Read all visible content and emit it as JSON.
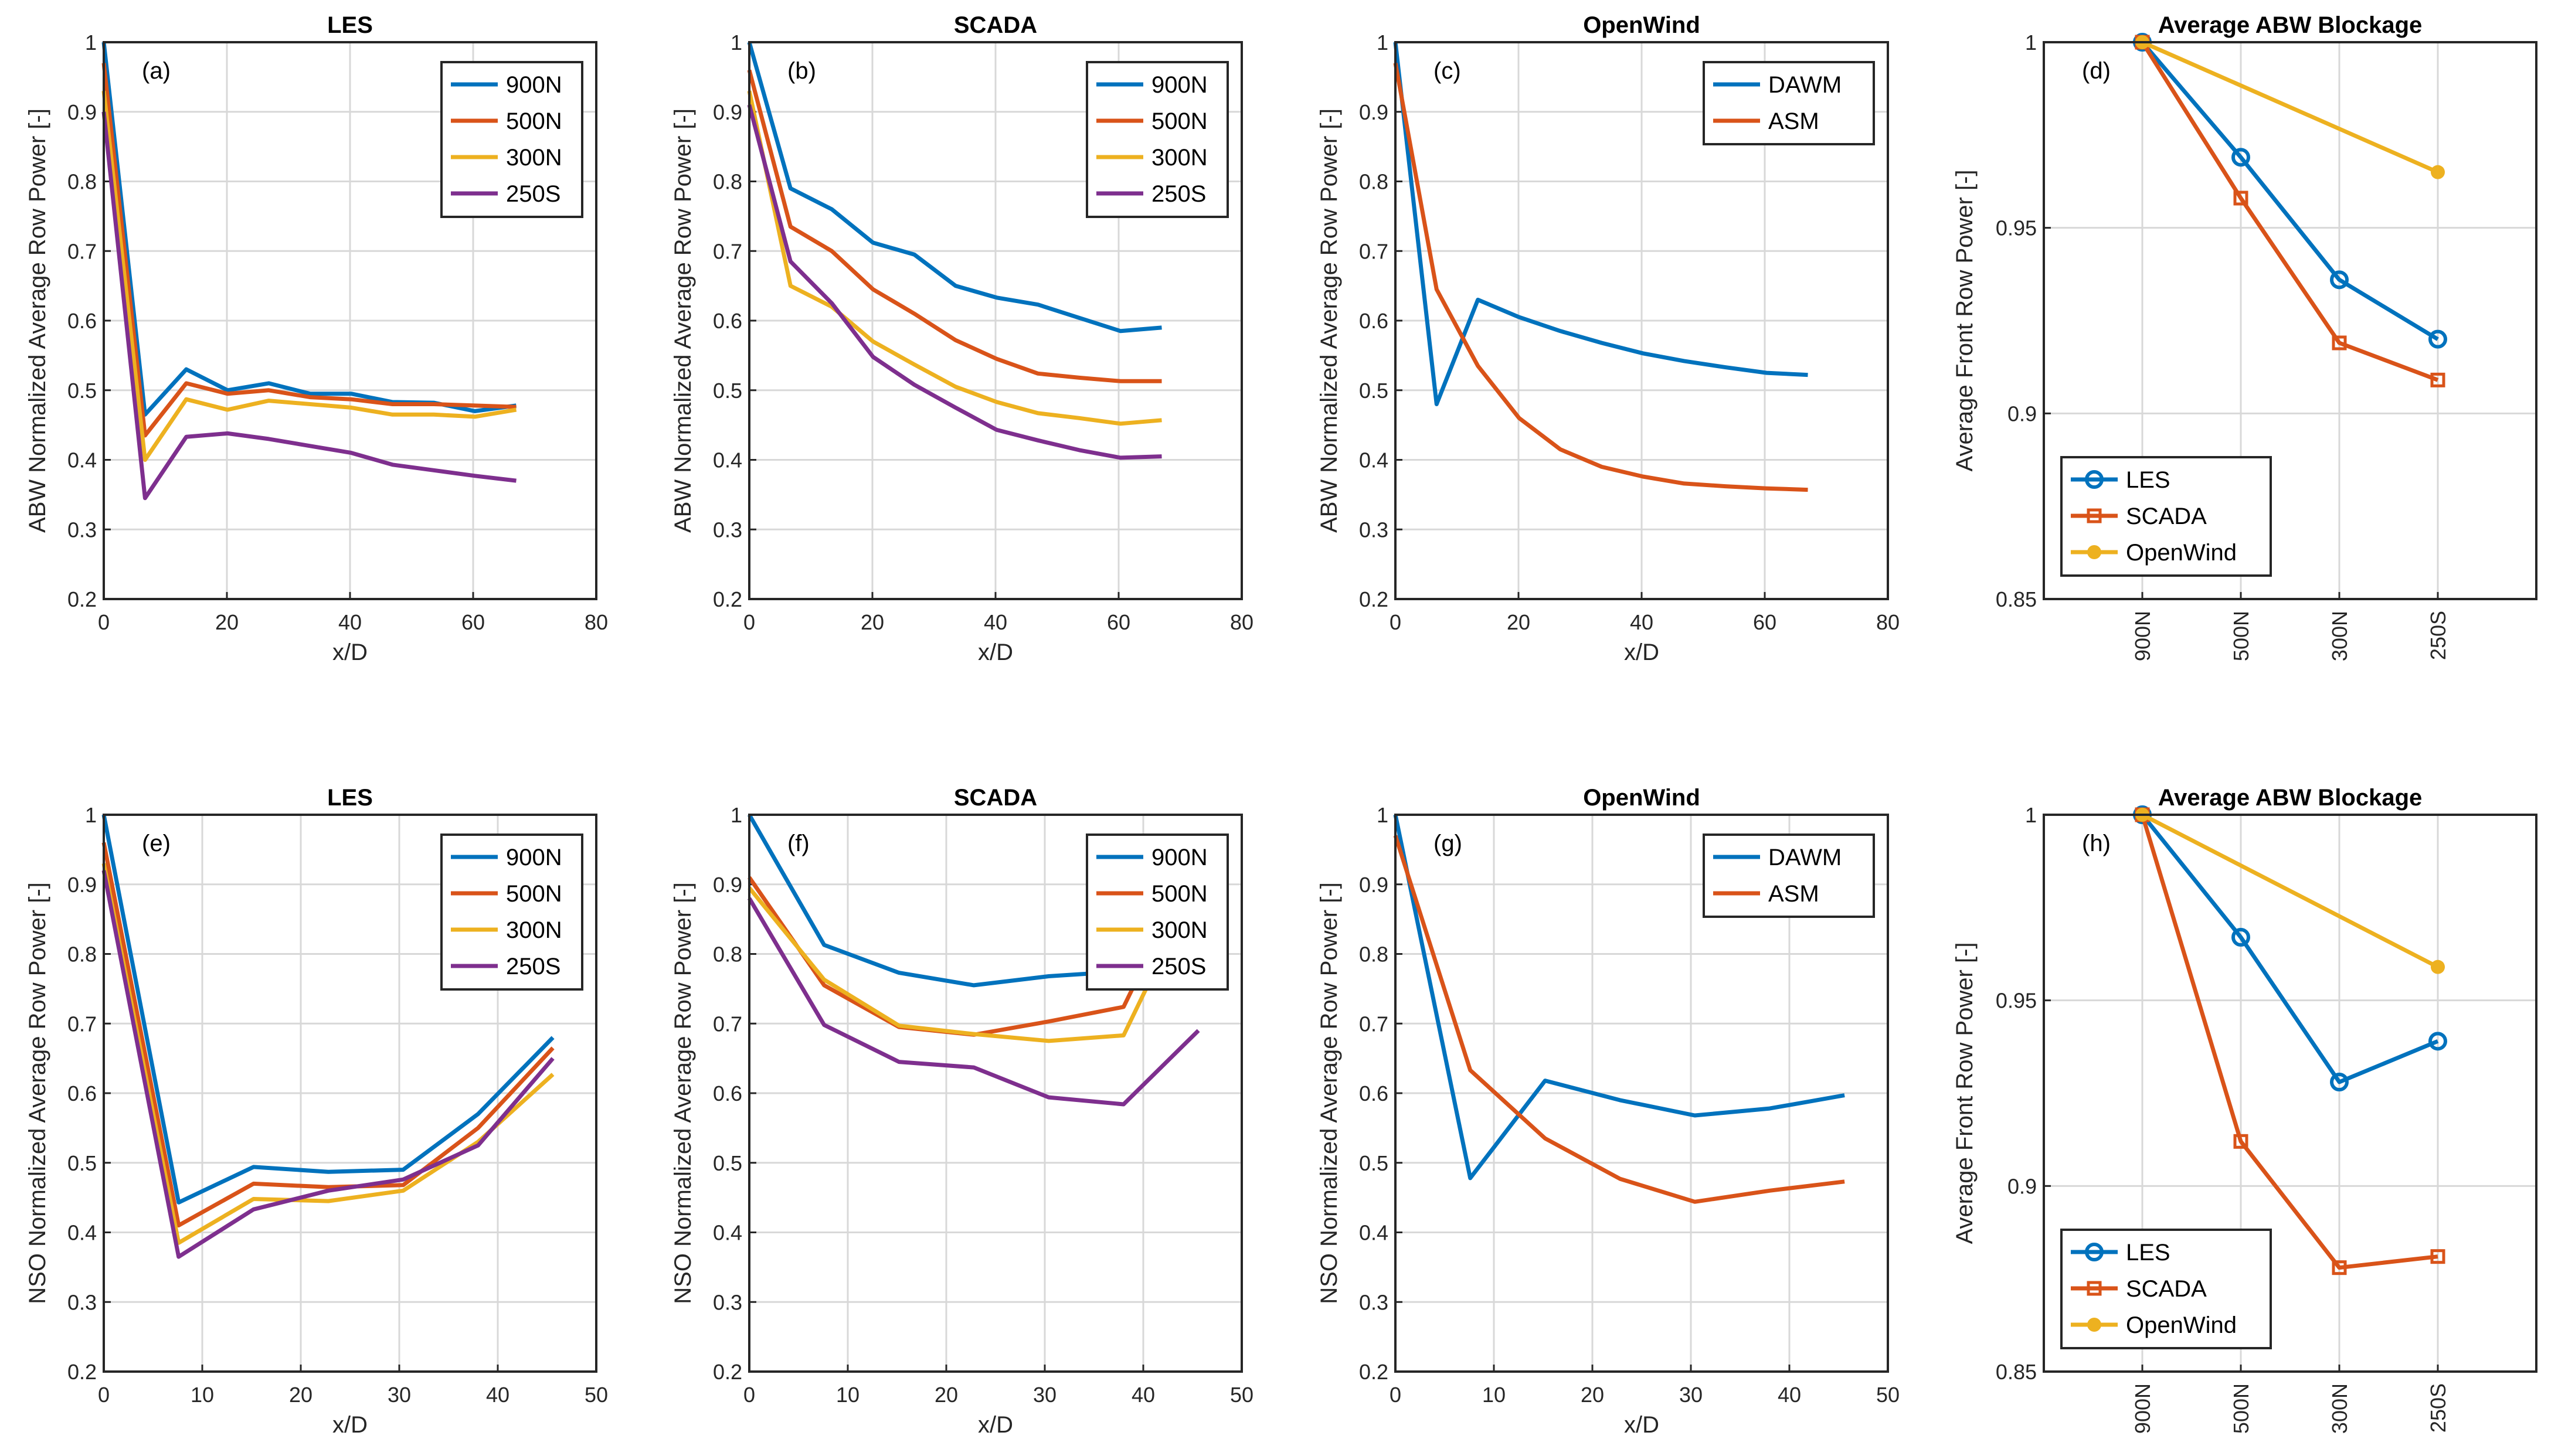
{
  "colors": {
    "c900N": "#0072BD",
    "c500N": "#D95319",
    "c300N": "#EDB120",
    "c250S": "#7E2F8E"
  },
  "chart_data": [
    {
      "type": "line",
      "title": "LES",
      "panel": "(a)",
      "xlabel": "x/D",
      "ylabel": "ABW Normalized Average Row Power [-]",
      "xlim": [
        0,
        80
      ],
      "ylim": [
        0.2,
        1
      ],
      "xticks": [
        0,
        20,
        40,
        60,
        80
      ],
      "yticks": [
        0.2,
        0.3,
        0.4,
        0.5,
        0.6,
        0.7,
        0.8,
        0.9,
        1
      ],
      "ytick_labels": [
        "0.2",
        "0.3",
        "0.4",
        "0.5",
        "0.6",
        "0.7",
        "0.8",
        "0.9",
        "1"
      ],
      "grid": true,
      "legend": "top-right",
      "series": [
        {
          "name": "900N",
          "color": "#0072BD",
          "x": [
            0,
            6.7,
            13.4,
            20.1,
            26.8,
            33.5,
            40.2,
            46.9,
            53.6,
            60.3,
            67
          ],
          "y": [
            1,
            0.465,
            0.53,
            0.5,
            0.51,
            0.495,
            0.495,
            0.483,
            0.482,
            0.47,
            0.478
          ]
        },
        {
          "name": "500N",
          "color": "#D95319",
          "x": [
            0,
            6.7,
            13.4,
            20.1,
            26.8,
            33.5,
            40.2,
            46.9,
            53.6,
            60.3,
            67
          ],
          "y": [
            0.97,
            0.435,
            0.51,
            0.495,
            0.5,
            0.49,
            0.487,
            0.48,
            0.48,
            0.478,
            0.476
          ]
        },
        {
          "name": "300N",
          "color": "#EDB120",
          "x": [
            0,
            6.7,
            13.4,
            20.1,
            26.8,
            33.5,
            40.2,
            46.9,
            53.6,
            60.3,
            67
          ],
          "y": [
            0.93,
            0.4,
            0.487,
            0.472,
            0.485,
            0.48,
            0.475,
            0.465,
            0.465,
            0.462,
            0.472
          ]
        },
        {
          "name": "250S",
          "color": "#7E2F8E",
          "x": [
            0,
            6.7,
            13.4,
            20.1,
            26.8,
            33.5,
            40.2,
            46.9,
            53.6,
            60.3,
            67
          ],
          "y": [
            0.9,
            0.345,
            0.433,
            0.438,
            0.43,
            0.42,
            0.41,
            0.393,
            0.385,
            0.377,
            0.37
          ]
        }
      ]
    },
    {
      "type": "line",
      "title": "SCADA",
      "panel": "(b)",
      "xlabel": "x/D",
      "ylabel": "ABW Normalized Average Row Power [-]",
      "xlim": [
        0,
        80
      ],
      "ylim": [
        0.2,
        1
      ],
      "xticks": [
        0,
        20,
        40,
        60,
        80
      ],
      "yticks": [
        0.2,
        0.3,
        0.4,
        0.5,
        0.6,
        0.7,
        0.8,
        0.9,
        1
      ],
      "ytick_labels": [
        "0.2",
        "0.3",
        "0.4",
        "0.5",
        "0.6",
        "0.7",
        "0.8",
        "0.9",
        "1"
      ],
      "grid": true,
      "legend": "top-right",
      "series": [
        {
          "name": "900N",
          "color": "#0072BD",
          "x": [
            0,
            6.7,
            13.4,
            20.1,
            26.8,
            33.5,
            40.2,
            46.9,
            53.6,
            60.3,
            67
          ],
          "y": [
            1,
            0.79,
            0.76,
            0.712,
            0.695,
            0.65,
            0.633,
            0.623,
            0.604,
            0.585,
            0.59
          ]
        },
        {
          "name": "500N",
          "color": "#D95319",
          "x": [
            0,
            6.7,
            13.4,
            20.1,
            26.8,
            33.5,
            40.2,
            46.9,
            53.6,
            60.3,
            67
          ],
          "y": [
            0.96,
            0.735,
            0.7,
            0.645,
            0.61,
            0.572,
            0.545,
            0.524,
            0.518,
            0.513,
            0.513
          ]
        },
        {
          "name": "300N",
          "color": "#EDB120",
          "x": [
            0,
            6.7,
            13.4,
            20.1,
            26.8,
            33.5,
            40.2,
            46.9,
            53.6,
            60.3,
            67
          ],
          "y": [
            0.93,
            0.65,
            0.62,
            0.57,
            0.537,
            0.505,
            0.483,
            0.467,
            0.46,
            0.452,
            0.457
          ]
        },
        {
          "name": "250S",
          "color": "#7E2F8E",
          "x": [
            0,
            6.7,
            13.4,
            20.1,
            26.8,
            33.5,
            40.2,
            46.9,
            53.6,
            60.3,
            67
          ],
          "y": [
            0.91,
            0.685,
            0.625,
            0.548,
            0.508,
            0.475,
            0.443,
            0.428,
            0.414,
            0.403,
            0.405
          ]
        }
      ]
    },
    {
      "type": "line",
      "title": "OpenWind",
      "panel": "(c)",
      "xlabel": "x/D",
      "ylabel": "ABW Normalized Average Row Power [-]",
      "xlim": [
        0,
        80
      ],
      "ylim": [
        0.2,
        1
      ],
      "xticks": [
        0,
        20,
        40,
        60,
        80
      ],
      "yticks": [
        0.2,
        0.3,
        0.4,
        0.5,
        0.6,
        0.7,
        0.8,
        0.9,
        1
      ],
      "ytick_labels": [
        "0.2",
        "0.3",
        "0.4",
        "0.5",
        "0.6",
        "0.7",
        "0.8",
        "0.9",
        "1"
      ],
      "grid": true,
      "legend": "top-right",
      "series": [
        {
          "name": "DAWM",
          "color": "#0072BD",
          "x": [
            0,
            6.7,
            13.4,
            20.1,
            26.8,
            33.5,
            40.2,
            46.9,
            53.6,
            60.3,
            67
          ],
          "y": [
            1,
            0.48,
            0.63,
            0.605,
            0.585,
            0.568,
            0.553,
            0.542,
            0.533,
            0.525,
            0.522
          ]
        },
        {
          "name": "ASM",
          "color": "#D95319",
          "x": [
            0,
            6.7,
            13.4,
            20.1,
            26.8,
            33.5,
            40.2,
            46.9,
            53.6,
            60.3,
            67
          ],
          "y": [
            0.97,
            0.645,
            0.535,
            0.46,
            0.415,
            0.39,
            0.376,
            0.366,
            0.362,
            0.359,
            0.357
          ]
        }
      ]
    },
    {
      "type": "line",
      "title": "Average ABW Blockage",
      "panel": "(d)",
      "xlabel": "",
      "ylabel": "Average Front Row Power [-]",
      "categories": [
        "900N",
        "500N",
        "300N",
        "250S"
      ],
      "xlim": [
        0,
        5
      ],
      "ylim": [
        0.85,
        1
      ],
      "yticks": [
        0.85,
        0.9,
        0.95,
        1
      ],
      "ytick_labels": [
        "0.85",
        "0.9",
        "0.95",
        "1"
      ],
      "grid": true,
      "legend": "bottom-left",
      "series": [
        {
          "name": "LES",
          "color": "#0072BD",
          "marker": "circle",
          "values": [
            1,
            0.969,
            0.936,
            0.92
          ]
        },
        {
          "name": "SCADA",
          "color": "#D95319",
          "marker": "square",
          "values": [
            1,
            0.958,
            0.919,
            0.909
          ]
        },
        {
          "name": "OpenWind",
          "color": "#EDB120",
          "marker": "dot",
          "values": [
            1,
            null,
            null,
            0.965
          ]
        }
      ]
    },
    {
      "type": "line",
      "title": "LES",
      "panel": "(e)",
      "xlabel": "x/D",
      "ylabel": "NSO Normalized Average Row Power [-]",
      "xlim": [
        0,
        50
      ],
      "ylim": [
        0.2,
        1
      ],
      "xticks": [
        0,
        10,
        20,
        30,
        40,
        50
      ],
      "yticks": [
        0.2,
        0.3,
        0.4,
        0.5,
        0.6,
        0.7,
        0.8,
        0.9,
        1
      ],
      "ytick_labels": [
        "0.2",
        "0.3",
        "0.4",
        "0.5",
        "0.6",
        "0.7",
        "0.8",
        "0.9",
        "1"
      ],
      "grid": true,
      "legend": "top-right",
      "series": [
        {
          "name": "900N",
          "color": "#0072BD",
          "x": [
            0,
            7.6,
            15.2,
            22.8,
            30.4,
            38,
            45.6
          ],
          "y": [
            1,
            0.443,
            0.494,
            0.487,
            0.49,
            0.57,
            0.68
          ]
        },
        {
          "name": "500N",
          "color": "#D95319",
          "x": [
            0,
            7.6,
            15.2,
            22.8,
            30.4,
            38,
            45.6
          ],
          "y": [
            0.96,
            0.41,
            0.47,
            0.465,
            0.468,
            0.55,
            0.665
          ]
        },
        {
          "name": "300N",
          "color": "#EDB120",
          "x": [
            0,
            7.6,
            15.2,
            22.8,
            30.4,
            38,
            45.6
          ],
          "y": [
            0.93,
            0.385,
            0.448,
            0.445,
            0.46,
            0.53,
            0.627
          ]
        },
        {
          "name": "250S",
          "color": "#7E2F8E",
          "x": [
            0,
            7.6,
            15.2,
            22.8,
            30.4,
            38,
            45.6
          ],
          "y": [
            0.92,
            0.365,
            0.433,
            0.46,
            0.476,
            0.525,
            0.65
          ]
        }
      ]
    },
    {
      "type": "line",
      "title": "SCADA",
      "panel": "(f)",
      "xlabel": "x/D",
      "ylabel": "NSO Normalized Average Row Power [-]",
      "xlim": [
        0,
        50
      ],
      "ylim": [
        0.2,
        1
      ],
      "xticks": [
        0,
        10,
        20,
        30,
        40,
        50
      ],
      "yticks": [
        0.2,
        0.3,
        0.4,
        0.5,
        0.6,
        0.7,
        0.8,
        0.9,
        1
      ],
      "ytick_labels": [
        "0.2",
        "0.3",
        "0.4",
        "0.5",
        "0.6",
        "0.7",
        "0.8",
        "0.9",
        "1"
      ],
      "grid": true,
      "legend": "top-right",
      "series": [
        {
          "name": "900N",
          "color": "#0072BD",
          "x": [
            0,
            7.6,
            15.2,
            22.8,
            30.4,
            38,
            42
          ],
          "y": [
            1,
            0.813,
            0.773,
            0.755,
            0.768,
            0.775,
            0.84
          ]
        },
        {
          "name": "500N",
          "color": "#D95319",
          "x": [
            0,
            7.6,
            15.2,
            22.8,
            30.4,
            38,
            42
          ],
          "y": [
            0.91,
            0.755,
            0.695,
            0.684,
            0.703,
            0.724,
            0.84
          ]
        },
        {
          "name": "300N",
          "color": "#EDB120",
          "x": [
            0,
            7.6,
            15.2,
            22.8,
            30.4,
            38,
            42
          ],
          "y": [
            0.895,
            0.763,
            0.697,
            0.685,
            0.675,
            0.683,
            0.8
          ]
        },
        {
          "name": "250S",
          "color": "#7E2F8E",
          "x": [
            0,
            7.6,
            15.2,
            22.8,
            30.4,
            38,
            45.6
          ],
          "y": [
            0.88,
            0.698,
            0.645,
            0.637,
            0.594,
            0.584,
            0.69
          ]
        }
      ]
    },
    {
      "type": "line",
      "title": "OpenWind",
      "panel": "(g)",
      "xlabel": "x/D",
      "ylabel": "NSO Normalized Average Row Power [-]",
      "xlim": [
        0,
        50
      ],
      "ylim": [
        0.2,
        1
      ],
      "xticks": [
        0,
        10,
        20,
        30,
        40,
        50
      ],
      "yticks": [
        0.2,
        0.3,
        0.4,
        0.5,
        0.6,
        0.7,
        0.8,
        0.9,
        1
      ],
      "ytick_labels": [
        "0.2",
        "0.3",
        "0.4",
        "0.5",
        "0.6",
        "0.7",
        "0.8",
        "0.9",
        "1"
      ],
      "grid": true,
      "legend": "top-right",
      "series": [
        {
          "name": "DAWM",
          "color": "#0072BD",
          "x": [
            0,
            7.6,
            15.2,
            22.8,
            30.4,
            38,
            45.6
          ],
          "y": [
            1,
            0.478,
            0.618,
            0.59,
            0.568,
            0.578,
            0.597
          ]
        },
        {
          "name": "ASM",
          "color": "#D95319",
          "x": [
            0,
            7.6,
            15.2,
            22.8,
            30.4,
            38,
            45.6
          ],
          "y": [
            0.97,
            0.633,
            0.535,
            0.477,
            0.444,
            0.46,
            0.473
          ]
        }
      ]
    },
    {
      "type": "line",
      "title": "Average ABW Blockage",
      "panel": "(h)",
      "xlabel": "",
      "ylabel": "Average Front Row Power [-]",
      "categories": [
        "900N",
        "500N",
        "300N",
        "250S"
      ],
      "xlim": [
        0,
        5
      ],
      "ylim": [
        0.85,
        1
      ],
      "yticks": [
        0.85,
        0.9,
        0.95,
        1
      ],
      "ytick_labels": [
        "0.85",
        "0.9",
        "0.95",
        "1"
      ],
      "grid": true,
      "legend": "bottom-left",
      "series": [
        {
          "name": "LES",
          "color": "#0072BD",
          "marker": "circle",
          "values": [
            1,
            0.967,
            0.928,
            0.939
          ]
        },
        {
          "name": "SCADA",
          "color": "#D95319",
          "marker": "square",
          "values": [
            1,
            0.912,
            0.878,
            0.881
          ]
        },
        {
          "name": "OpenWind",
          "color": "#EDB120",
          "marker": "dot",
          "values": [
            1,
            null,
            null,
            0.959
          ]
        }
      ]
    }
  ]
}
